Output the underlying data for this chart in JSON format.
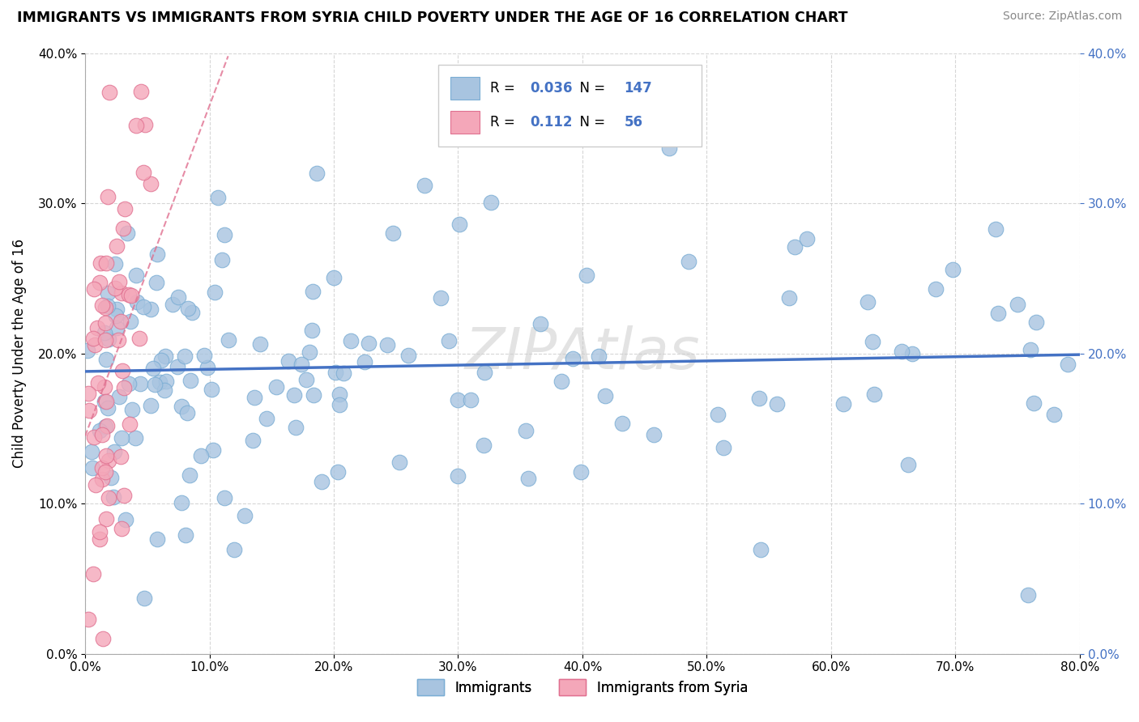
{
  "title": "IMMIGRANTS VS IMMIGRANTS FROM SYRIA CHILD POVERTY UNDER THE AGE OF 16 CORRELATION CHART",
  "source": "Source: ZipAtlas.com",
  "ylabel": "Child Poverty Under the Age of 16",
  "xlim": [
    0,
    0.8
  ],
  "ylim": [
    0,
    0.4
  ],
  "xticks": [
    0.0,
    0.1,
    0.2,
    0.3,
    0.4,
    0.5,
    0.6,
    0.7,
    0.8
  ],
  "yticks": [
    0.0,
    0.1,
    0.2,
    0.3,
    0.4
  ],
  "blue_color": "#a8c4e0",
  "blue_edge": "#7aadd4",
  "blue_line_color": "#4472c4",
  "pink_color": "#f4a7b9",
  "pink_edge": "#e07090",
  "pink_line_color": "#e07090",
  "R_blue": 0.036,
  "N_blue": 147,
  "R_pink": 0.112,
  "N_pink": 56,
  "blue_intercept": 0.188,
  "blue_slope": 0.014,
  "pink_intercept": 0.145,
  "pink_slope": 2.2,
  "watermark": "ZIPAtlas",
  "legend_label_blue": "Immigrants",
  "legend_label_pink": "Immigrants from Syria"
}
